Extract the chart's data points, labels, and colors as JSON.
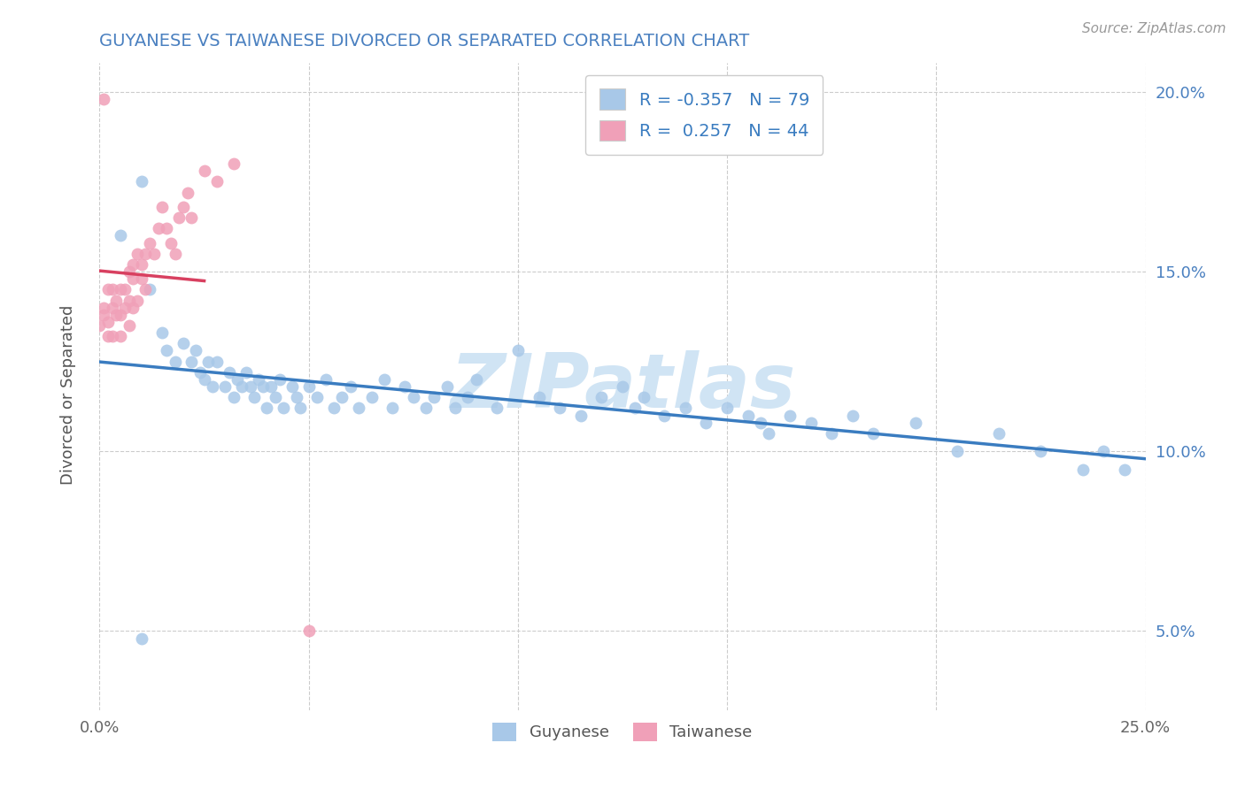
{
  "title": "GUYANESE VS TAIWANESE DIVORCED OR SEPARATED CORRELATION CHART",
  "source_text": "Source: ZipAtlas.com",
  "ylabel": "Divorced or Separated",
  "xlim": [
    0.0,
    0.25
  ],
  "ylim": [
    0.028,
    0.208
  ],
  "x_ticks": [
    0.0,
    0.05,
    0.1,
    0.15,
    0.2,
    0.25
  ],
  "x_tick_labels": [
    "0.0%",
    "",
    "",
    "",
    "",
    "25.0%"
  ],
  "y_ticks": [
    0.05,
    0.1,
    0.15,
    0.2
  ],
  "y_tick_labels": [
    "5.0%",
    "10.0%",
    "15.0%",
    "20.0%"
  ],
  "legend_label_blue": "Guyanese",
  "legend_label_pink": "Taiwanese",
  "R_blue": -0.357,
  "N_blue": 79,
  "R_pink": 0.257,
  "N_pink": 44,
  "blue_color": "#a8c8e8",
  "pink_color": "#f0a0b8",
  "blue_line_color": "#3a7cc0",
  "pink_line_color": "#d84060",
  "title_color": "#4a80c0",
  "watermark_color": "#d0e4f4",
  "background_color": "#ffffff",
  "blue_scatter_x": [
    0.005,
    0.01,
    0.012,
    0.015,
    0.016,
    0.018,
    0.02,
    0.022,
    0.023,
    0.024,
    0.025,
    0.026,
    0.027,
    0.028,
    0.03,
    0.031,
    0.032,
    0.033,
    0.034,
    0.035,
    0.036,
    0.037,
    0.038,
    0.039,
    0.04,
    0.041,
    0.042,
    0.043,
    0.044,
    0.046,
    0.047,
    0.048,
    0.05,
    0.052,
    0.054,
    0.056,
    0.058,
    0.06,
    0.062,
    0.065,
    0.068,
    0.07,
    0.073,
    0.075,
    0.078,
    0.08,
    0.083,
    0.085,
    0.088,
    0.09,
    0.095,
    0.1,
    0.105,
    0.11,
    0.115,
    0.12,
    0.125,
    0.128,
    0.13,
    0.135,
    0.14,
    0.145,
    0.15,
    0.155,
    0.158,
    0.16,
    0.165,
    0.17,
    0.175,
    0.18,
    0.185,
    0.195,
    0.205,
    0.215,
    0.225,
    0.235,
    0.24,
    0.245,
    0.01
  ],
  "blue_scatter_y": [
    0.16,
    0.175,
    0.145,
    0.133,
    0.128,
    0.125,
    0.13,
    0.125,
    0.128,
    0.122,
    0.12,
    0.125,
    0.118,
    0.125,
    0.118,
    0.122,
    0.115,
    0.12,
    0.118,
    0.122,
    0.118,
    0.115,
    0.12,
    0.118,
    0.112,
    0.118,
    0.115,
    0.12,
    0.112,
    0.118,
    0.115,
    0.112,
    0.118,
    0.115,
    0.12,
    0.112,
    0.115,
    0.118,
    0.112,
    0.115,
    0.12,
    0.112,
    0.118,
    0.115,
    0.112,
    0.115,
    0.118,
    0.112,
    0.115,
    0.12,
    0.112,
    0.128,
    0.115,
    0.112,
    0.11,
    0.115,
    0.118,
    0.112,
    0.115,
    0.11,
    0.112,
    0.108,
    0.112,
    0.11,
    0.108,
    0.105,
    0.11,
    0.108,
    0.105,
    0.11,
    0.105,
    0.108,
    0.1,
    0.105,
    0.1,
    0.095,
    0.1,
    0.095,
    0.048
  ],
  "pink_scatter_x": [
    0.0,
    0.001,
    0.001,
    0.002,
    0.002,
    0.002,
    0.003,
    0.003,
    0.003,
    0.004,
    0.004,
    0.005,
    0.005,
    0.005,
    0.006,
    0.006,
    0.007,
    0.007,
    0.007,
    0.008,
    0.008,
    0.008,
    0.009,
    0.009,
    0.01,
    0.01,
    0.011,
    0.011,
    0.012,
    0.013,
    0.014,
    0.015,
    0.016,
    0.017,
    0.018,
    0.019,
    0.02,
    0.021,
    0.022,
    0.025,
    0.028,
    0.032,
    0.05,
    0.001
  ],
  "pink_scatter_y": [
    0.135,
    0.14,
    0.138,
    0.145,
    0.132,
    0.136,
    0.14,
    0.145,
    0.132,
    0.138,
    0.142,
    0.145,
    0.138,
    0.132,
    0.14,
    0.145,
    0.15,
    0.142,
    0.135,
    0.148,
    0.152,
    0.14,
    0.155,
    0.142,
    0.148,
    0.152,
    0.155,
    0.145,
    0.158,
    0.155,
    0.162,
    0.168,
    0.162,
    0.158,
    0.155,
    0.165,
    0.168,
    0.172,
    0.165,
    0.178,
    0.175,
    0.18,
    0.05,
    0.198
  ]
}
